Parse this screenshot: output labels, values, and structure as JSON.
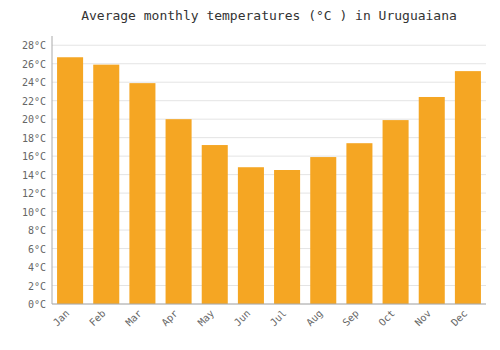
{
  "chart_data": {
    "type": "bar",
    "title": "Average monthly temperatures (°C ) in Uruguaiana",
    "categories": [
      "Jan",
      "Feb",
      "Mar",
      "Apr",
      "May",
      "Jun",
      "Jul",
      "Aug",
      "Sep",
      "Oct",
      "Nov",
      "Dec"
    ],
    "values": [
      26.7,
      25.9,
      23.9,
      20.0,
      17.2,
      14.8,
      14.5,
      15.9,
      17.4,
      19.9,
      22.4,
      25.2
    ],
    "color": "#F5A623",
    "ylim": [
      0,
      29
    ],
    "yticks": [
      {
        "value": 0,
        "label": "0°C"
      },
      {
        "value": 2,
        "label": "2°C"
      },
      {
        "value": 4,
        "label": "4°C"
      },
      {
        "value": 6,
        "label": "6°C"
      },
      {
        "value": 8,
        "label": "8°C"
      },
      {
        "value": 10,
        "label": "10°C"
      },
      {
        "value": 12,
        "label": "12°C"
      },
      {
        "value": 14,
        "label": "14°C"
      },
      {
        "value": 16,
        "label": "16°C"
      },
      {
        "value": 18,
        "label": "18°C"
      },
      {
        "value": 20,
        "label": "20°C"
      },
      {
        "value": 22,
        "label": "22°C"
      },
      {
        "value": 24,
        "label": "24°C"
      },
      {
        "value": 26,
        "label": "26°C"
      },
      {
        "value": 28,
        "label": "28°C"
      }
    ],
    "grid": true
  }
}
